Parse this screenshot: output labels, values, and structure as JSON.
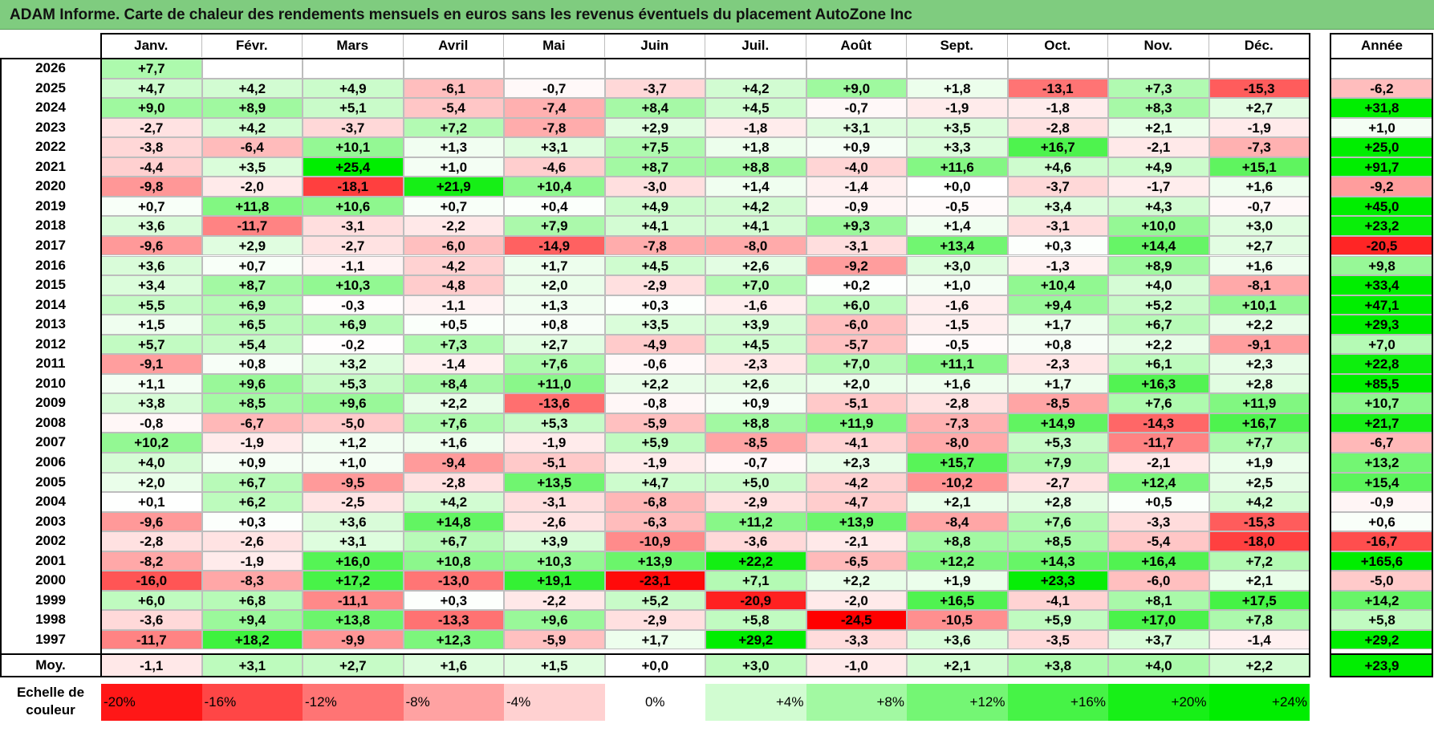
{
  "title": "ADAM Informe. Carte de chaleur des rendements mensuels en euros sans les revenus éventuels du placement AutoZone Inc",
  "chart_data": {
    "type": "heatmap",
    "title": "ADAM Informe. Carte de chaleur des rendements mensuels en euros sans les revenus éventuels du placement AutoZone Inc",
    "columns": [
      "Janv.",
      "Févr.",
      "Mars",
      "Avril",
      "Mai",
      "Juin",
      "Juil.",
      "Août",
      "Sept.",
      "Oct.",
      "Nov.",
      "Déc."
    ],
    "annual_header": "Année",
    "rows": [
      {
        "year": "2026",
        "values": [
          "+7,7",
          "",
          "",
          "",
          "",
          "",
          "",
          "",
          "",
          "",
          "",
          ""
        ],
        "annual": ""
      },
      {
        "year": "2025",
        "values": [
          "+4,7",
          "+4,2",
          "+4,9",
          "-6,1",
          "-0,7",
          "-3,7",
          "+4,2",
          "+9,0",
          "+1,8",
          "-13,1",
          "+7,3",
          "-15,3"
        ],
        "annual": "-6,2"
      },
      {
        "year": "2024",
        "values": [
          "+9,0",
          "+8,9",
          "+5,1",
          "-5,4",
          "-7,4",
          "+8,4",
          "+4,5",
          "-0,7",
          "-1,9",
          "-1,8",
          "+8,3",
          "+2,7"
        ],
        "annual": "+31,8"
      },
      {
        "year": "2023",
        "values": [
          "-2,7",
          "+4,2",
          "-3,7",
          "+7,2",
          "-7,8",
          "+2,9",
          "-1,8",
          "+3,1",
          "+3,5",
          "-2,8",
          "+2,1",
          "-1,9"
        ],
        "annual": "+1,0"
      },
      {
        "year": "2022",
        "values": [
          "-3,8",
          "-6,4",
          "+10,1",
          "+1,3",
          "+3,1",
          "+7,5",
          "+1,8",
          "+0,9",
          "+3,3",
          "+16,7",
          "-2,1",
          "-7,3"
        ],
        "annual": "+25,0"
      },
      {
        "year": "2021",
        "values": [
          "-4,4",
          "+3,5",
          "+25,4",
          "+1,0",
          "-4,6",
          "+8,7",
          "+8,8",
          "-4,0",
          "+11,6",
          "+4,6",
          "+4,9",
          "+15,1"
        ],
        "annual": "+91,7"
      },
      {
        "year": "2020",
        "values": [
          "-9,8",
          "-2,0",
          "-18,1",
          "+21,9",
          "+10,4",
          "-3,0",
          "+1,4",
          "-1,4",
          "+0,0",
          "-3,7",
          "-1,7",
          "+1,6"
        ],
        "annual": "-9,2"
      },
      {
        "year": "2019",
        "values": [
          "+0,7",
          "+11,8",
          "+10,6",
          "+0,7",
          "+0,4",
          "+4,9",
          "+4,2",
          "-0,9",
          "-0,5",
          "+3,4",
          "+4,3",
          "-0,7"
        ],
        "annual": "+45,0"
      },
      {
        "year": "2018",
        "values": [
          "+3,6",
          "-11,7",
          "-3,1",
          "-2,2",
          "+7,9",
          "+4,1",
          "+4,1",
          "+9,3",
          "+1,4",
          "-3,1",
          "+10,0",
          "+3,0"
        ],
        "annual": "+23,2"
      },
      {
        "year": "2017",
        "values": [
          "-9,6",
          "+2,9",
          "-2,7",
          "-6,0",
          "-14,9",
          "-7,8",
          "-8,0",
          "-3,1",
          "+13,4",
          "+0,3",
          "+14,4",
          "+2,7"
        ],
        "annual": "-20,5"
      },
      {
        "year": "2016",
        "values": [
          "+3,6",
          "+0,7",
          "-1,1",
          "-4,2",
          "+1,7",
          "+4,5",
          "+2,6",
          "-9,2",
          "+3,0",
          "-1,3",
          "+8,9",
          "+1,6"
        ],
        "annual": "+9,8"
      },
      {
        "year": "2015",
        "values": [
          "+3,4",
          "+8,7",
          "+10,3",
          "-4,8",
          "+2,0",
          "-2,9",
          "+7,0",
          "+0,2",
          "+1,0",
          "+10,4",
          "+4,0",
          "-8,1"
        ],
        "annual": "+33,4"
      },
      {
        "year": "2014",
        "values": [
          "+5,5",
          "+6,9",
          "-0,3",
          "-1,1",
          "+1,3",
          "+0,3",
          "-1,6",
          "+6,0",
          "-1,6",
          "+9,4",
          "+5,2",
          "+10,1"
        ],
        "annual": "+47,1"
      },
      {
        "year": "2013",
        "values": [
          "+1,5",
          "+6,5",
          "+6,9",
          "+0,5",
          "+0,8",
          "+3,5",
          "+3,9",
          "-6,0",
          "-1,5",
          "+1,7",
          "+6,7",
          "+2,2"
        ],
        "annual": "+29,3"
      },
      {
        "year": "2012",
        "values": [
          "+5,7",
          "+5,4",
          "-0,2",
          "+7,3",
          "+2,7",
          "-4,9",
          "+4,5",
          "-5,7",
          "-0,5",
          "+0,8",
          "+2,2",
          "-9,1"
        ],
        "annual": "+7,0"
      },
      {
        "year": "2011",
        "values": [
          "-9,1",
          "+0,8",
          "+3,2",
          "-1,4",
          "+7,6",
          "-0,6",
          "-2,3",
          "+7,0",
          "+11,1",
          "-2,3",
          "+6,1",
          "+2,3"
        ],
        "annual": "+22,8"
      },
      {
        "year": "2010",
        "values": [
          "+1,1",
          "+9,6",
          "+5,3",
          "+8,4",
          "+11,0",
          "+2,2",
          "+2,6",
          "+2,0",
          "+1,6",
          "+1,7",
          "+16,3",
          "+2,8"
        ],
        "annual": "+85,5"
      },
      {
        "year": "2009",
        "values": [
          "+3,8",
          "+8,5",
          "+9,6",
          "+2,2",
          "-13,6",
          "-0,8",
          "+0,9",
          "-5,1",
          "-2,8",
          "-8,5",
          "+7,6",
          "+11,9"
        ],
        "annual": "+10,7"
      },
      {
        "year": "2008",
        "values": [
          "-0,8",
          "-6,7",
          "-5,0",
          "+7,6",
          "+5,3",
          "-5,9",
          "+8,8",
          "+11,9",
          "-7,3",
          "+14,9",
          "-14,3",
          "+16,7"
        ],
        "annual": "+21,7"
      },
      {
        "year": "2007",
        "values": [
          "+10,2",
          "-1,9",
          "+1,2",
          "+1,6",
          "-1,9",
          "+5,9",
          "-8,5",
          "-4,1",
          "-8,0",
          "+5,3",
          "-11,7",
          "+7,7"
        ],
        "annual": "-6,7"
      },
      {
        "year": "2006",
        "values": [
          "+4,0",
          "+0,9",
          "+1,0",
          "-9,4",
          "-5,1",
          "-1,9",
          "-0,7",
          "+2,3",
          "+15,7",
          "+7,9",
          "-2,1",
          "+1,9"
        ],
        "annual": "+13,2"
      },
      {
        "year": "2005",
        "values": [
          "+2,0",
          "+6,7",
          "-9,5",
          "-2,8",
          "+13,5",
          "+4,7",
          "+5,0",
          "-4,2",
          "-10,2",
          "-2,7",
          "+12,4",
          "+2,5"
        ],
        "annual": "+15,4"
      },
      {
        "year": "2004",
        "values": [
          "+0,1",
          "+6,2",
          "-2,5",
          "+4,2",
          "-3,1",
          "-6,8",
          "-2,9",
          "-4,7",
          "+2,1",
          "+2,8",
          "+0,5",
          "+4,2"
        ],
        "annual": "-0,9"
      },
      {
        "year": "2003",
        "values": [
          "-9,6",
          "+0,3",
          "+3,6",
          "+14,8",
          "-2,6",
          "-6,3",
          "+11,2",
          "+13,9",
          "-8,4",
          "+7,6",
          "-3,3",
          "-15,3"
        ],
        "annual": "+0,6"
      },
      {
        "year": "2002",
        "values": [
          "-2,8",
          "-2,6",
          "+3,1",
          "+6,7",
          "+3,9",
          "-10,9",
          "-3,6",
          "-2,1",
          "+8,8",
          "+8,5",
          "-5,4",
          "-18,0"
        ],
        "annual": "-16,7"
      },
      {
        "year": "2001",
        "values": [
          "-8,2",
          "-1,9",
          "+16,0",
          "+10,8",
          "+10,3",
          "+13,9",
          "+22,2",
          "-6,5",
          "+12,2",
          "+14,3",
          "+16,4",
          "+7,2"
        ],
        "annual": "+165,6"
      },
      {
        "year": "2000",
        "values": [
          "-16,0",
          "-8,3",
          "+17,2",
          "-13,0",
          "+19,1",
          "-23,1",
          "+7,1",
          "+2,2",
          "+1,9",
          "+23,3",
          "-6,0",
          "+2,1"
        ],
        "annual": "-5,0"
      },
      {
        "year": "1999",
        "values": [
          "+6,0",
          "+6,8",
          "-11,1",
          "+0,3",
          "-2,2",
          "+5,2",
          "-20,9",
          "-2,0",
          "+16,5",
          "-4,1",
          "+8,1",
          "+17,5"
        ],
        "annual": "+14,2"
      },
      {
        "year": "1998",
        "values": [
          "-3,6",
          "+9,4",
          "+13,8",
          "-13,3",
          "+9,6",
          "-2,9",
          "+5,8",
          "-24,5",
          "-10,5",
          "+5,9",
          "+17,0",
          "+7,8"
        ],
        "annual": "+5,8"
      },
      {
        "year": "1997",
        "values": [
          "-11,7",
          "+18,2",
          "-9,9",
          "+12,3",
          "-5,9",
          "+1,7",
          "+29,2",
          "-3,3",
          "+3,6",
          "-3,5",
          "+3,7",
          "-1,4"
        ],
        "annual": "+29,2"
      }
    ],
    "average": {
      "label": "Moy.",
      "values": [
        "-1,1",
        "+3,1",
        "+2,7",
        "+1,6",
        "+1,5",
        "+0,0",
        "+3,0",
        "-1,0",
        "+2,1",
        "+3,8",
        "+4,0",
        "+2,2"
      ],
      "annual": "+23,9"
    },
    "scale_label": "Echelle de couleur",
    "scale": [
      "-20%",
      "-16%",
      "-12%",
      "-8%",
      "-4%",
      "0%",
      "+4%",
      "+8%",
      "+12%",
      "+16%",
      "+20%",
      "+24%"
    ],
    "colors": {
      "title_bg": "#7fcc7f",
      "negative_max": "#ff0000",
      "neutral": "#ffffff",
      "positive_max": "#00ee00"
    }
  }
}
